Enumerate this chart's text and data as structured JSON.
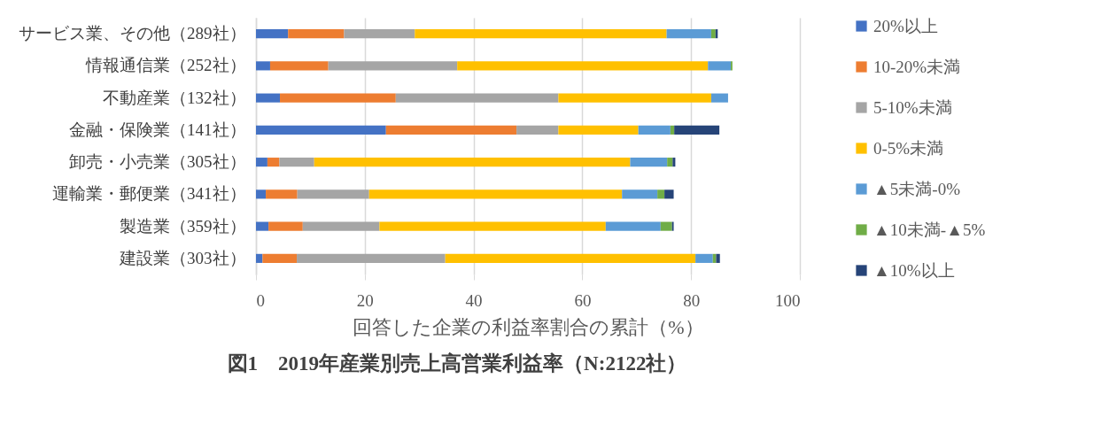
{
  "chart_data": {
    "type": "bar",
    "orientation": "horizontal",
    "stacked": true,
    "title": "図1　2019年産業別売上高営業利益率（N:2122社）",
    "xlabel": "回答した企業の利益率割合の累計（%）",
    "categories": [
      "サービス業、その他（289社）",
      "情報通信業（252社）",
      "不動産業（132社）",
      "金融・保険業（141社）",
      "卸売・小売業（305社）",
      "運輸業・郵便業（341社）",
      "製造業（359社）",
      "建設業（303社）"
    ],
    "series": [
      {
        "name": "20%以上",
        "color": "#4472c4",
        "values": [
          5.9,
          2.6,
          4.4,
          23.9,
          2.1,
          1.8,
          2.3,
          1.2
        ]
      },
      {
        "name": "10-20%未満",
        "color": "#ed7d31",
        "values": [
          10.3,
          10.7,
          21.3,
          24.0,
          2.2,
          5.8,
          6.3,
          6.3
        ]
      },
      {
        "name": "5-10%未満",
        "color": "#a5a5a5",
        "values": [
          13.0,
          23.7,
          29.9,
          7.7,
          6.4,
          13.2,
          14.1,
          27.3
        ]
      },
      {
        "name": "0-5%未満",
        "color": "#ffc000",
        "values": [
          46.3,
          46.1,
          28.1,
          14.7,
          58.1,
          46.5,
          41.6,
          46.0
        ]
      },
      {
        "name": "▲5未満-0%",
        "color": "#5b9bd5",
        "values": [
          8.2,
          4.2,
          3.1,
          5.9,
          6.8,
          6.5,
          10.1,
          3.2
        ]
      },
      {
        "name": "▲10未満-▲5%",
        "color": "#70ad47",
        "values": [
          0.8,
          0.3,
          0,
          0.7,
          1.0,
          1.3,
          2.1,
          0.6
        ]
      },
      {
        "name": "▲10%以上",
        "color": "#264478",
        "values": [
          0.4,
          0,
          0,
          8.3,
          0.5,
          1.7,
          0.3,
          0.7
        ]
      }
    ],
    "xlim": [
      0,
      100
    ],
    "xticks": [
      0,
      20,
      40,
      60,
      80,
      100
    ],
    "grid": "x",
    "legend": "right"
  }
}
